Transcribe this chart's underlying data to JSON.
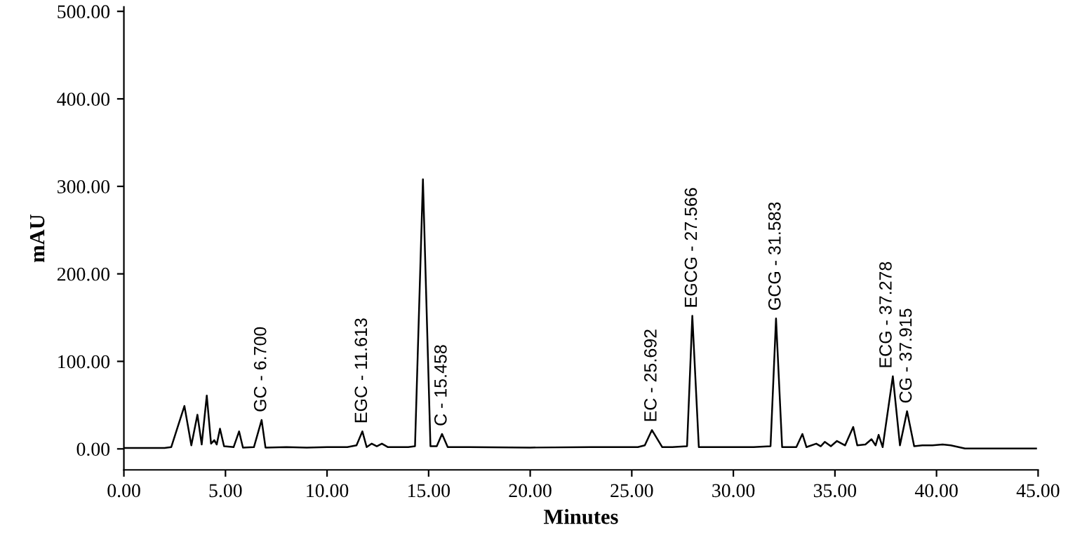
{
  "chart_data": {
    "type": "line",
    "xlabel": "Minutes",
    "ylabel": "mAU",
    "xlim": [
      0,
      45
    ],
    "ylim": [
      -24,
      505
    ],
    "xticks": [
      {
        "value": 0,
        "label": "0.00"
      },
      {
        "value": 5,
        "label": "5.00"
      },
      {
        "value": 10,
        "label": "10.00"
      },
      {
        "value": 15,
        "label": "15.00"
      },
      {
        "value": 20,
        "label": "20.00"
      },
      {
        "value": 25,
        "label": "25.00"
      },
      {
        "value": 30,
        "label": "30.00"
      },
      {
        "value": 35,
        "label": "35.00"
      },
      {
        "value": 40,
        "label": "40.00"
      },
      {
        "value": 45,
        "label": "45.00"
      }
    ],
    "yticks": [
      {
        "value": 0,
        "label": "0.00"
      },
      {
        "value": 100,
        "label": "100.00"
      },
      {
        "value": 200,
        "label": "200.00"
      },
      {
        "value": 300,
        "label": "300.00"
      },
      {
        "value": 400,
        "label": "400.00"
      },
      {
        "value": 500,
        "label": "500.00"
      }
    ],
    "grid": false,
    "legend": false,
    "marker": "none",
    "line_style": "solid",
    "series": [
      {
        "color": "#000000",
        "x": [
          0,
          2.0,
          2.33,
          2.98,
          3.32,
          3.62,
          3.83,
          4.08,
          4.29,
          4.45,
          4.57,
          4.73,
          4.93,
          5.4,
          5.67,
          5.86,
          6.4,
          6.78,
          6.97,
          8.0,
          9.0,
          10.0,
          11.0,
          11.45,
          11.74,
          11.95,
          12.2,
          12.45,
          12.7,
          13.0,
          14.0,
          14.33,
          14.72,
          15.09,
          15.4,
          15.66,
          15.94,
          17.0,
          20.0,
          23.0,
          25.3,
          25.64,
          25.99,
          26.5,
          27.0,
          27.72,
          27.98,
          28.3,
          29.5,
          31.0,
          31.83,
          32.1,
          32.4,
          33.1,
          33.4,
          33.6,
          34.08,
          34.3,
          34.5,
          34.8,
          35.1,
          35.5,
          35.9,
          36.1,
          36.5,
          36.8,
          37.0,
          37.15,
          37.35,
          37.85,
          38.2,
          38.55,
          38.9,
          39.3,
          39.8,
          40.3,
          40.7,
          41.4,
          43.0,
          44.9
        ],
        "values": [
          1,
          1,
          2,
          49,
          4,
          39,
          5,
          61,
          6,
          10,
          5,
          23,
          3,
          2,
          20,
          1.5,
          2,
          33,
          1.5,
          2,
          1.5,
          2,
          2,
          4,
          20,
          2,
          6,
          3,
          6,
          2,
          2,
          3,
          308,
          3,
          3,
          17,
          2,
          2,
          1.5,
          2,
          2,
          4,
          21.5,
          2,
          2,
          3,
          152,
          2,
          2,
          2,
          3,
          149,
          2,
          2,
          17,
          2,
          6,
          3,
          8,
          3,
          9,
          4,
          25,
          4,
          5,
          11,
          4,
          16,
          2,
          83,
          4,
          43,
          3,
          4,
          4,
          5,
          4,
          0.5,
          0.5,
          0.5
        ]
      }
    ],
    "annotations": [
      {
        "text": "GC - 6.700",
        "x": 6.78,
        "y": 33
      },
      {
        "text": "EGC - 11.613",
        "x": 11.74,
        "y": 20
      },
      {
        "text": "C - 15.458",
        "x": 15.66,
        "y": 17
      },
      {
        "text": "EC - 25.692",
        "x": 25.99,
        "y": 21.5
      },
      {
        "text": "EGCG - 27.566",
        "x": 27.98,
        "y": 152
      },
      {
        "text": "GCG - 31.583",
        "x": 32.1,
        "y": 149
      },
      {
        "text": "ECG - 37.278",
        "x": 37.85,
        "y": 83
      },
      {
        "text": "CG - 37.915",
        "x": 38.55,
        "y": 43
      }
    ]
  }
}
